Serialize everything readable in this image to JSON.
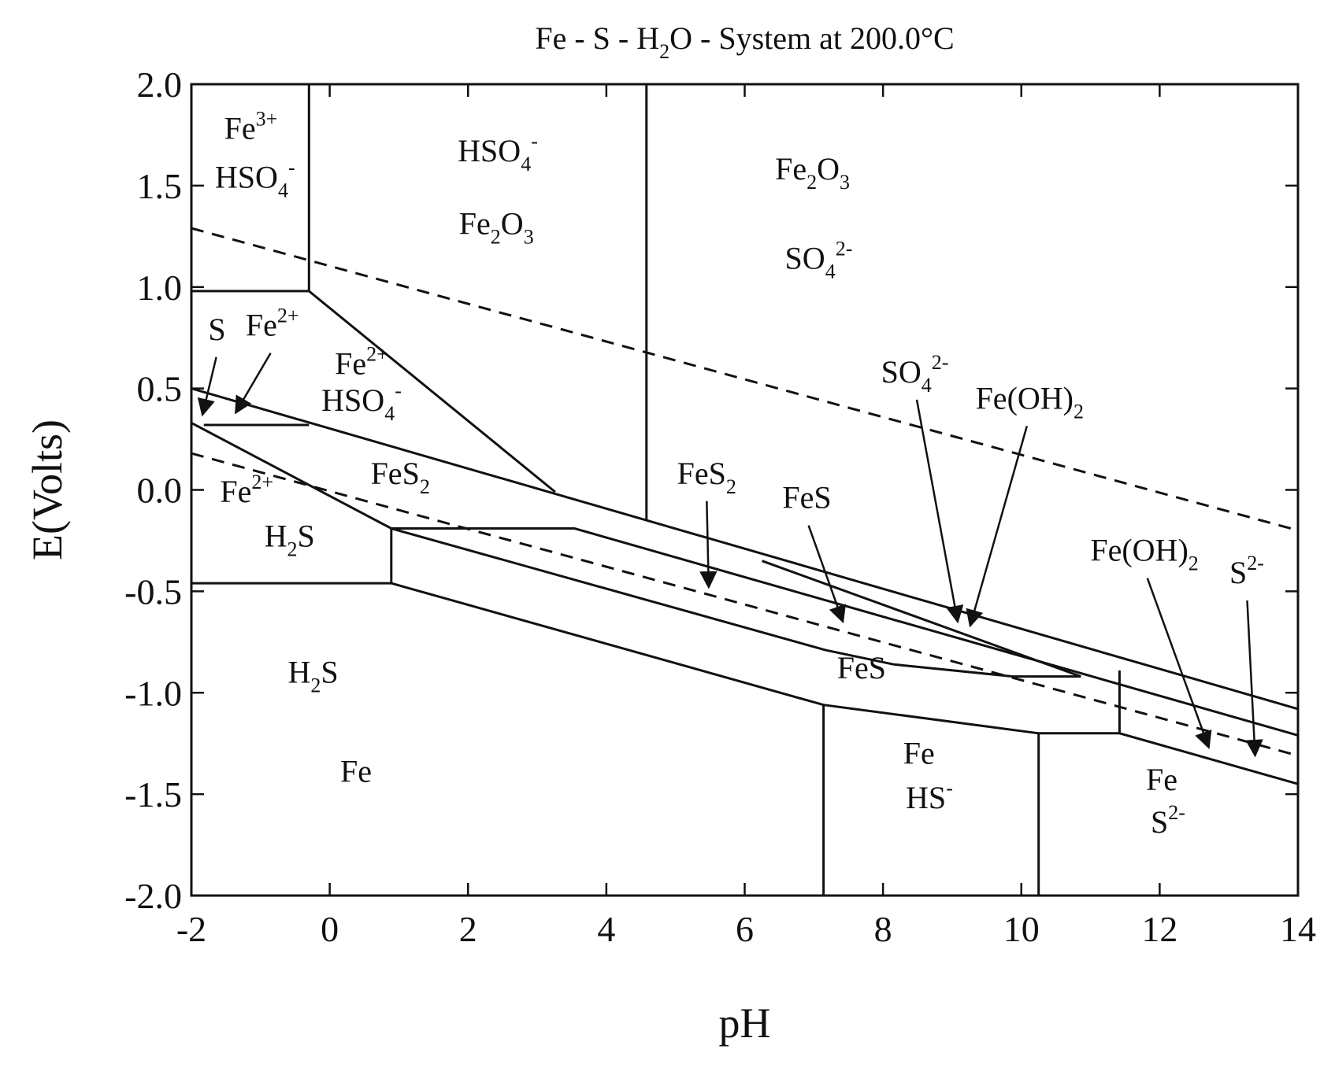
{
  "chart_data": {
    "type": "phase-diagram",
    "title": [
      {
        "text": "Fe - S - H"
      },
      {
        "text": "2",
        "script": "sub"
      },
      {
        "text": "O - System at 200.0°C"
      }
    ],
    "x_label": "pH",
    "y_label": "E(Volts)",
    "xlim": [
      -2,
      14
    ],
    "ylim": [
      -2,
      2
    ],
    "xticks": [
      -2,
      0,
      2,
      4,
      6,
      8,
      10,
      12,
      14
    ],
    "yticks": [
      {
        "value": -2,
        "label": "-2.0"
      },
      {
        "value": -1.5,
        "label": "-1.5"
      },
      {
        "value": -1,
        "label": "-1.0"
      },
      {
        "value": -0.5,
        "label": "-0.5"
      },
      {
        "value": 0,
        "label": "0.0"
      },
      {
        "value": 0.5,
        "label": "0.5"
      },
      {
        "value": 1,
        "label": "1.0"
      },
      {
        "value": 1.5,
        "label": "1.5"
      },
      {
        "value": 2,
        "label": "2.0"
      }
    ],
    "color": "#111111",
    "lines": [
      {
        "dashed": false,
        "x": [
          -2,
          -0.3,
          -0.3
        ],
        "y": [
          0.98,
          0.98,
          2.0
        ]
      },
      {
        "dashed": false,
        "x": [
          -0.3,
          3.26
        ],
        "y": [
          0.98,
          -0.01
        ]
      },
      {
        "dashed": false,
        "x": [
          4.58,
          4.58
        ],
        "y": [
          2.0,
          -0.15
        ]
      },
      {
        "dashed": false,
        "x": [
          -2,
          14
        ],
        "y": [
          0.5,
          -1.08
        ]
      },
      {
        "dashed": false,
        "x": [
          -1.82,
          -0.3
        ],
        "y": [
          0.32,
          0.32
        ]
      },
      {
        "dashed": false,
        "x": [
          -2,
          0.89,
          3.54,
          14
        ],
        "y": [
          0.33,
          -0.19,
          -0.19,
          -1.21
        ]
      },
      {
        "dashed": false,
        "x": [
          0.89,
          7.17,
          8.15,
          9.88,
          10.86
        ],
        "y": [
          -0.19,
          -0.79,
          -0.86,
          -0.92,
          -0.92
        ]
      },
      {
        "dashed": false,
        "x": [
          6.25,
          10.86
        ],
        "y": [
          -0.35,
          -0.92
        ]
      },
      {
        "dashed": false,
        "x": [
          -2,
          0.89,
          0.89
        ],
        "y": [
          -0.46,
          -0.46,
          -0.19
        ]
      },
      {
        "dashed": false,
        "x": [
          0.89,
          7.14,
          10.25,
          11.42,
          14
        ],
        "y": [
          -0.46,
          -1.06,
          -1.2,
          -1.2,
          -1.45
        ]
      },
      {
        "dashed": false,
        "x": [
          7.14,
          7.14
        ],
        "y": [
          -1.06,
          -2.0
        ]
      },
      {
        "dashed": false,
        "x": [
          10.25,
          10.25
        ],
        "y": [
          -1.2,
          -2.0
        ]
      },
      {
        "dashed": false,
        "x": [
          11.42,
          11.42
        ],
        "y": [
          -0.89,
          -1.2
        ]
      },
      {
        "dashed": true,
        "x": [
          -2,
          14
        ],
        "y": [
          1.29,
          -0.2
        ]
      },
      {
        "dashed": true,
        "x": [
          -2,
          14
        ],
        "y": [
          0.18,
          -1.31
        ]
      }
    ],
    "labels": [
      {
        "x": -1.14,
        "y": 1.73,
        "parts": [
          {
            "text": "Fe"
          },
          {
            "text": "3+",
            "script": "sup"
          }
        ]
      },
      {
        "x": -1.08,
        "y": 1.49,
        "parts": [
          {
            "text": "HSO"
          },
          {
            "text": "4",
            "script": "sub"
          },
          {
            "text": "-",
            "script": "sup"
          }
        ]
      },
      {
        "x": 2.43,
        "y": 1.62,
        "parts": [
          {
            "text": "HSO"
          },
          {
            "text": "4",
            "script": "sub"
          },
          {
            "text": "-",
            "script": "sup"
          }
        ]
      },
      {
        "x": 2.41,
        "y": 1.26,
        "parts": [
          {
            "text": "Fe"
          },
          {
            "text": "2",
            "script": "sub"
          },
          {
            "text": "O"
          },
          {
            "text": "3",
            "script": "sub"
          }
        ]
      },
      {
        "x": 6.98,
        "y": 1.53,
        "parts": [
          {
            "text": "Fe"
          },
          {
            "text": "2",
            "script": "sub"
          },
          {
            "text": "O"
          },
          {
            "text": "3",
            "script": "sub"
          }
        ]
      },
      {
        "x": 7.07,
        "y": 1.09,
        "parts": [
          {
            "text": "SO"
          },
          {
            "text": "4",
            "script": "sub"
          },
          {
            "text": "2-",
            "script": "sup"
          }
        ]
      },
      {
        "x": -1.63,
        "y": 0.74,
        "parts": [
          {
            "text": "S"
          }
        ],
        "arrow_to": [
          -1.84,
          0.37
        ]
      },
      {
        "x": -0.83,
        "y": 0.76,
        "parts": [
          {
            "text": "Fe"
          },
          {
            "text": "2+",
            "script": "sup"
          }
        ],
        "arrow_to": [
          -1.36,
          0.38
        ]
      },
      {
        "x": 0.46,
        "y": 0.57,
        "parts": [
          {
            "text": "Fe"
          },
          {
            "text": "2+",
            "script": "sup"
          }
        ]
      },
      {
        "x": 0.46,
        "y": 0.39,
        "parts": [
          {
            "text": "HSO"
          },
          {
            "text": "4",
            "script": "sub"
          },
          {
            "text": "-",
            "script": "sup"
          }
        ]
      },
      {
        "x": 1.02,
        "y": 0.03,
        "parts": [
          {
            "text": "FeS"
          },
          {
            "text": "2",
            "script": "sub"
          }
        ]
      },
      {
        "x": -1.2,
        "y": -0.06,
        "parts": [
          {
            "text": "Fe"
          },
          {
            "text": "2+",
            "script": "sup"
          }
        ]
      },
      {
        "x": -0.58,
        "y": -0.28,
        "parts": [
          {
            "text": "H"
          },
          {
            "text": "2",
            "script": "sub"
          },
          {
            "text": "S"
          }
        ]
      },
      {
        "x": 5.45,
        "y": 0.03,
        "parts": [
          {
            "text": "FeS"
          },
          {
            "text": "2",
            "script": "sub"
          }
        ],
        "arrow_to": [
          5.48,
          -0.48
        ]
      },
      {
        "x": 6.9,
        "y": -0.09,
        "parts": [
          {
            "text": "FeS"
          }
        ],
        "arrow_to": [
          7.42,
          -0.65
        ]
      },
      {
        "x": 8.46,
        "y": 0.53,
        "parts": [
          {
            "text": "SO"
          },
          {
            "text": "4",
            "script": "sub"
          },
          {
            "text": "2-",
            "script": "sup"
          }
        ],
        "arrow_to": [
          9.08,
          -0.65
        ]
      },
      {
        "x": 10.12,
        "y": 0.4,
        "parts": [
          {
            "text": "Fe(OH)"
          },
          {
            "text": "2",
            "script": "sub"
          }
        ],
        "arrow_to": [
          9.26,
          -0.67
        ]
      },
      {
        "x": 11.78,
        "y": -0.35,
        "parts": [
          {
            "text": "Fe(OH)"
          },
          {
            "text": "2",
            "script": "sub"
          }
        ],
        "arrow_to": [
          12.71,
          -1.27
        ]
      },
      {
        "x": 13.26,
        "y": -0.46,
        "parts": [
          {
            "text": "S"
          },
          {
            "text": "2-",
            "script": "sup"
          }
        ],
        "arrow_to": [
          13.38,
          -1.31
        ]
      },
      {
        "x": -0.24,
        "y": -0.95,
        "parts": [
          {
            "text": "H"
          },
          {
            "text": "2",
            "script": "sub"
          },
          {
            "text": "S"
          }
        ]
      },
      {
        "x": 7.69,
        "y": -0.93,
        "parts": [
          {
            "text": "FeS"
          }
        ]
      },
      {
        "x": 0.38,
        "y": -1.44,
        "parts": [
          {
            "text": "Fe"
          }
        ]
      },
      {
        "x": 8.52,
        "y": -1.35,
        "parts": [
          {
            "text": "Fe"
          }
        ]
      },
      {
        "x": 8.67,
        "y": -1.57,
        "parts": [
          {
            "text": "HS"
          },
          {
            "text": "-",
            "script": "sup"
          }
        ]
      },
      {
        "x": 12.03,
        "y": -1.48,
        "parts": [
          {
            "text": "Fe"
          }
        ]
      },
      {
        "x": 12.12,
        "y": -1.69,
        "parts": [
          {
            "text": "S"
          },
          {
            "text": "2-",
            "script": "sup"
          }
        ]
      }
    ]
  }
}
